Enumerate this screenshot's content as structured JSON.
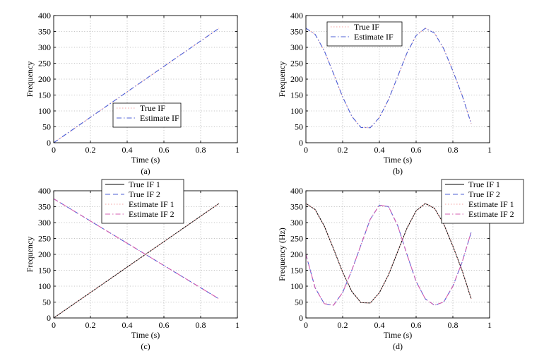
{
  "figure": {
    "captions": [
      "(a)",
      "(b)",
      "(c)",
      "(d)"
    ]
  },
  "chart_data": [
    {
      "type": "line",
      "xlabel": "Time (s)",
      "ylabel": "Frequency",
      "xlim": [
        0,
        1
      ],
      "ylim": [
        0,
        400
      ],
      "xticks": [
        "0",
        "0.2",
        "0.4",
        "0.6",
        "0.8",
        "1"
      ],
      "yticks": [
        "0",
        "50",
        "100",
        "150",
        "200",
        "250",
        "300",
        "350",
        "400"
      ],
      "grid": true,
      "legend_position": "center",
      "x": [
        0,
        0.9
      ],
      "series": [
        {
          "name": "True IF",
          "values": [
            0,
            360
          ],
          "color": "#f4a3a3",
          "style": "dotted"
        },
        {
          "name": "Estimate IF",
          "values": [
            0,
            360
          ],
          "color": "#4d5fd6",
          "style": "dashdot"
        }
      ]
    },
    {
      "type": "line",
      "xlabel": "Time (s)",
      "ylabel": "Frequency",
      "xlim": [
        0,
        1
      ],
      "ylim": [
        0,
        400
      ],
      "xticks": [
        "0",
        "0.2",
        "0.4",
        "0.6",
        "0.8",
        "1"
      ],
      "yticks": [
        "0",
        "50",
        "100",
        "150",
        "200",
        "250",
        "300",
        "350",
        "400"
      ],
      "grid": true,
      "legend_position": "top-left",
      "x": [
        0,
        0.05,
        0.1,
        0.15,
        0.2,
        0.25,
        0.3,
        0.35,
        0.4,
        0.45,
        0.5,
        0.55,
        0.6,
        0.65,
        0.7,
        0.75,
        0.8,
        0.85,
        0.9
      ],
      "series": [
        {
          "name": "True IF",
          "values": [
            360,
            341,
            289,
            218,
            144,
            83,
            48,
            47,
            79,
            136,
            209,
            282,
            337,
            360,
            345,
            296,
            226,
            150,
            60
          ],
          "color": "#f4a3a3",
          "style": "dotted"
        },
        {
          "name": "Estimate IF",
          "values": [
            360,
            341,
            289,
            218,
            144,
            83,
            48,
            47,
            79,
            136,
            209,
            282,
            337,
            360,
            345,
            296,
            226,
            150,
            60
          ],
          "color": "#4d5fd6",
          "style": "dashdot"
        }
      ]
    },
    {
      "type": "line",
      "xlabel": "Time (s)",
      "ylabel": "Frequency",
      "xlim": [
        0,
        1
      ],
      "ylim": [
        0,
        400
      ],
      "xticks": [
        "0",
        "0.2",
        "0.4",
        "0.6",
        "0.8",
        "1"
      ],
      "yticks": [
        "0",
        "50",
        "100",
        "150",
        "200",
        "250",
        "300",
        "350",
        "400"
      ],
      "grid": true,
      "legend_position": "top-center",
      "x": [
        0,
        0.9
      ],
      "series": [
        {
          "name": "True IF 1",
          "values": [
            0,
            360
          ],
          "color": "#000000",
          "style": "solid"
        },
        {
          "name": "True IF 2",
          "values": [
            375,
            60
          ],
          "color": "#4d5fd6",
          "style": "dashed"
        },
        {
          "name": "Estimate IF 1",
          "values": [
            0,
            360
          ],
          "color": "#f4a3a3",
          "style": "dotted"
        },
        {
          "name": "Estimate IF 2",
          "values": [
            375,
            60
          ],
          "color": "#d65fb0",
          "style": "dashdot"
        }
      ]
    },
    {
      "type": "line",
      "xlabel": "Time (s)",
      "ylabel": "Frequency (Hz)",
      "xlim": [
        0,
        1
      ],
      "ylim": [
        0,
        400
      ],
      "xticks": [
        "0",
        "0.2",
        "0.4",
        "0.6",
        "0.8",
        "1"
      ],
      "yticks": [
        "0",
        "50",
        "100",
        "150",
        "200",
        "250",
        "300",
        "350",
        "400"
      ],
      "grid": true,
      "legend_position": "top-right",
      "x": [
        0,
        0.05,
        0.1,
        0.15,
        0.2,
        0.25,
        0.3,
        0.35,
        0.4,
        0.45,
        0.5,
        0.55,
        0.6,
        0.65,
        0.7,
        0.75,
        0.8,
        0.85,
        0.9
      ],
      "series": [
        {
          "name": "True IF 1",
          "values": [
            360,
            341,
            289,
            218,
            144,
            83,
            48,
            47,
            79,
            136,
            209,
            282,
            337,
            360,
            345,
            296,
            226,
            150,
            60
          ],
          "color": "#000000",
          "style": "solid"
        },
        {
          "name": "True IF 2",
          "values": [
            200,
            95,
            45,
            40,
            80,
            150,
            230,
            310,
            355,
            350,
            290,
            200,
            115,
            60,
            40,
            50,
            100,
            175,
            270
          ],
          "color": "#4d5fd6",
          "style": "dashed"
        },
        {
          "name": "Estimate IF 1",
          "values": [
            360,
            341,
            289,
            218,
            144,
            83,
            48,
            47,
            79,
            136,
            209,
            282,
            337,
            360,
            345,
            296,
            226,
            150,
            60
          ],
          "color": "#f4a3a3",
          "style": "dotted"
        },
        {
          "name": "Estimate IF 2",
          "values": [
            200,
            95,
            45,
            40,
            80,
            150,
            230,
            310,
            355,
            350,
            290,
            200,
            115,
            60,
            40,
            50,
            100,
            175,
            270
          ],
          "color": "#d65fb0",
          "style": "dashdot"
        }
      ]
    }
  ]
}
